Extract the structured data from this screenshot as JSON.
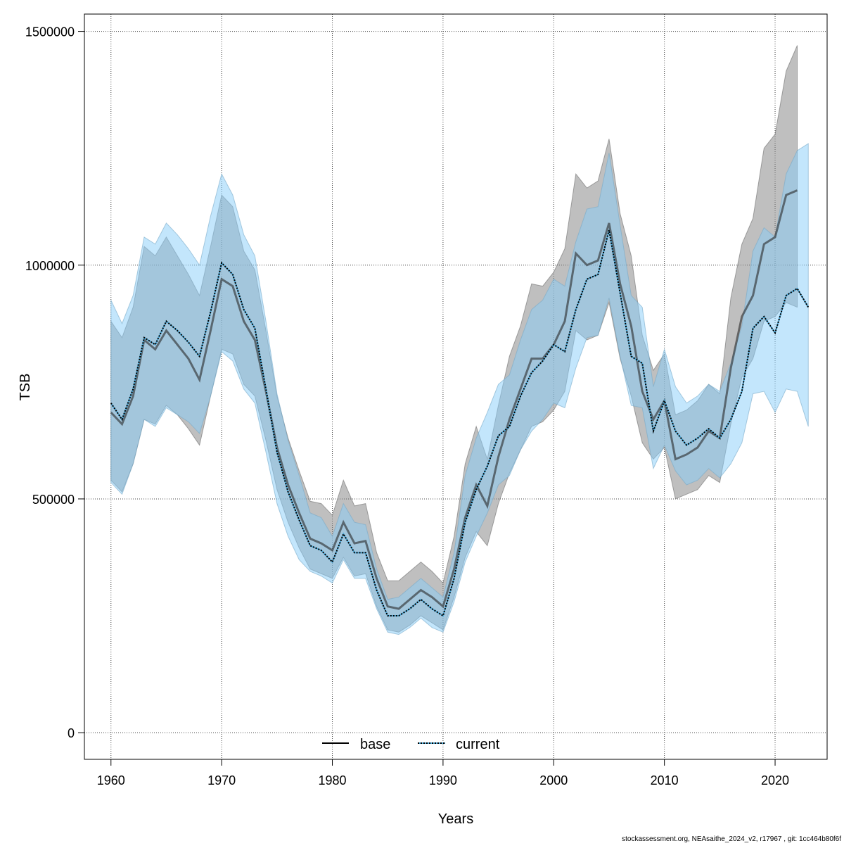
{
  "chart_data": {
    "type": "area",
    "title": "",
    "xlabel": "Years",
    "ylabel": "TSB",
    "xlim": [
      1957.6,
      2024.7
    ],
    "ylim": [
      -57000,
      1537000
    ],
    "x_ticks": [
      1960,
      1970,
      1980,
      1990,
      2000,
      2010,
      2020
    ],
    "x_tick_labels": [
      "1960",
      "1970",
      "1980",
      "1990",
      "2000",
      "2010",
      "2020"
    ],
    "y_ticks": [
      0,
      500000,
      1000000,
      1500000
    ],
    "y_tick_labels": [
      "0",
      "500000",
      "1000000",
      "1500000"
    ],
    "grid": true,
    "legend": {
      "placement": "bottom",
      "entries": [
        "base",
        "current"
      ]
    },
    "footer": "stockassessment.org, NEAsaithe_2024_v2, r17967 , git: 1cc464b80f6f",
    "colors": {
      "base_band": "#7f7f7f",
      "current_band": "#87cefa",
      "base_line": "#333333",
      "current_line": "#000000",
      "current_line_under": "#4aa8d8"
    },
    "series": [
      {
        "name": "base",
        "start_year": 1960,
        "values": [
          685,
          660,
          720,
          840,
          820,
          860,
          830,
          800,
          755,
          860,
          970,
          955,
          880,
          840,
          730,
          610,
          530,
          470,
          415,
          405,
          390,
          450,
          405,
          410,
          330,
          270,
          265,
          285,
          305,
          290,
          270,
          350,
          460,
          530,
          485,
          590,
          670,
          735,
          800,
          800,
          830,
          880,
          1025,
          1000,
          1010,
          1090,
          960,
          870,
          730,
          670,
          710,
          585,
          595,
          610,
          645,
          630,
          780,
          890,
          935,
          1045,
          1060,
          1150,
          1160
        ],
        "lower": [
          540,
          515,
          575,
          670,
          660,
          700,
          680,
          650,
          615,
          720,
          820,
          810,
          745,
          720,
          625,
          520,
          450,
          395,
          350,
          340,
          330,
          375,
          335,
          340,
          270,
          220,
          215,
          230,
          250,
          235,
          220,
          290,
          375,
          430,
          400,
          490,
          555,
          605,
          655,
          665,
          690,
          730,
          860,
          840,
          850,
          920,
          800,
          720,
          620,
          585,
          610,
          500,
          510,
          520,
          550,
          535,
          660,
          760,
          800,
          880,
          890,
          920,
          910
        ],
        "upper": [
          880,
          845,
          910,
          1040,
          1020,
          1060,
          1020,
          980,
          935,
          1040,
          1150,
          1125,
          1030,
          990,
          860,
          720,
          630,
          560,
          495,
          490,
          465,
          540,
          485,
          490,
          385,
          325,
          325,
          345,
          365,
          345,
          320,
          420,
          575,
          655,
          585,
          700,
          805,
          870,
          960,
          955,
          985,
          1035,
          1195,
          1165,
          1180,
          1270,
          1110,
          1020,
          850,
          775,
          810,
          680,
          690,
          710,
          745,
          725,
          930,
          1045,
          1100,
          1250,
          1280,
          1415,
          1470
        ],
        "unit_multiplier": 1000
      },
      {
        "name": "current",
        "start_year": 1960,
        "values": [
          705,
          670,
          735,
          845,
          830,
          880,
          860,
          835,
          805,
          900,
          1005,
          980,
          905,
          865,
          735,
          600,
          515,
          455,
          400,
          390,
          365,
          425,
          385,
          385,
          305,
          250,
          250,
          265,
          285,
          265,
          250,
          330,
          450,
          520,
          570,
          635,
          655,
          720,
          770,
          795,
          830,
          815,
          905,
          970,
          980,
          1075,
          940,
          805,
          790,
          645,
          710,
          645,
          615,
          630,
          650,
          630,
          670,
          730,
          865,
          890,
          855,
          935,
          950,
          910
        ],
        "lower": [
          535,
          510,
          575,
          670,
          655,
          695,
          680,
          665,
          640,
          720,
          815,
          795,
          735,
          705,
          600,
          490,
          420,
          370,
          345,
          335,
          320,
          370,
          330,
          330,
          265,
          215,
          210,
          225,
          245,
          225,
          215,
          280,
          365,
          420,
          470,
          530,
          550,
          605,
          645,
          670,
          705,
          695,
          780,
          845,
          850,
          930,
          805,
          700,
          695,
          565,
          615,
          560,
          530,
          540,
          565,
          545,
          575,
          620,
          725,
          730,
          685,
          735,
          730,
          655
        ],
        "upper": [
          925,
          875,
          935,
          1060,
          1045,
          1090,
          1065,
          1035,
          1000,
          1105,
          1195,
          1150,
          1065,
          1020,
          880,
          725,
          625,
          550,
          470,
          460,
          420,
          490,
          450,
          445,
          350,
          285,
          290,
          310,
          330,
          310,
          290,
          385,
          550,
          630,
          685,
          745,
          765,
          840,
          905,
          925,
          970,
          955,
          1050,
          1120,
          1125,
          1240,
          1085,
          935,
          910,
          740,
          820,
          740,
          705,
          720,
          745,
          730,
          790,
          870,
          1030,
          1080,
          1060,
          1195,
          1245,
          1260
        ],
        "unit_multiplier": 1000
      }
    ]
  }
}
